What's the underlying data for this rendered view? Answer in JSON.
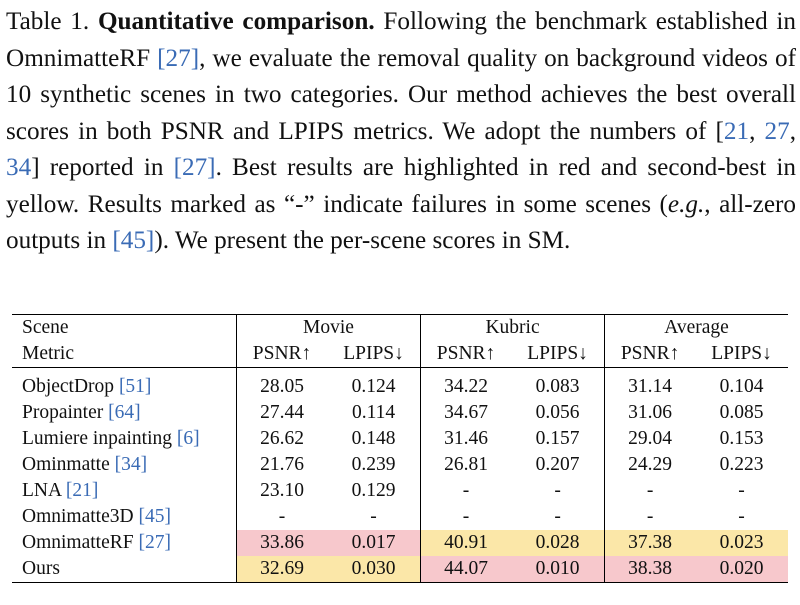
{
  "caption": {
    "label": "Table 1.",
    "title": "Quantitative comparison.",
    "p1": " Following the benchmark established in OmnimatteRF ",
    "c1": "[27]",
    "p2": ", we evaluate the removal quality on background videos of 10 synthetic scenes in two categories. Our method achieves the best overall scores in both PSNR and LPIPS metrics.  We adopt the numbers of [",
    "c2": "21",
    "p3": ", ",
    "c3": "27",
    "p4": ", ",
    "c4": "34",
    "p5": "] reported in ",
    "c5": "[27]",
    "p6": ". Best results are highlighted in red and second-best in yellow. Results marked as “-” indicate failures in some scenes (",
    "eg": "e.g.",
    "p7": ", all-zero outputs in ",
    "c6": "[45]",
    "p8": "). We present the per-scene scores in SM."
  },
  "table": {
    "scene_label": "Scene",
    "metric_label": "Metric",
    "groups": [
      "Movie",
      "Kubric",
      "Average"
    ],
    "metrics": [
      "PSNR↑",
      "LPIPS↓",
      "PSNR↑",
      "LPIPS↓",
      "PSNR↑",
      "LPIPS↓"
    ],
    "rows": [
      {
        "name": "ObjectDrop ",
        "cite": "[51]",
        "values": [
          "28.05",
          "0.124",
          "34.22",
          "0.083",
          "31.14",
          "0.104"
        ]
      },
      {
        "name": "Propainter ",
        "cite": "[64]",
        "values": [
          "27.44",
          "0.114",
          "34.67",
          "0.056",
          "31.06",
          "0.085"
        ]
      },
      {
        "name": "Lumiere inpainting ",
        "cite": "[6]",
        "values": [
          "26.62",
          "0.148",
          "31.46",
          "0.157",
          "29.04",
          "0.153"
        ]
      },
      {
        "name": "Ominmatte ",
        "cite": "[34]",
        "values": [
          "21.76",
          "0.239",
          "26.81",
          "0.207",
          "24.29",
          "0.223"
        ]
      },
      {
        "name": "LNA ",
        "cite": "[21]",
        "values": [
          "23.10",
          "0.129",
          "-",
          "-",
          "-",
          "-"
        ]
      },
      {
        "name": "Omnimatte3D ",
        "cite": "[45]",
        "values": [
          "-",
          "-",
          "-",
          "-",
          "-",
          "-"
        ]
      },
      {
        "name": "OmnimatteRF ",
        "cite": "[27]",
        "values": [
          "33.86",
          "0.017",
          "40.91",
          "0.028",
          "37.38",
          "0.023"
        ]
      },
      {
        "name": "Ours",
        "cite": "",
        "values": [
          "32.69",
          "0.030",
          "44.07",
          "0.010",
          "38.38",
          "0.020"
        ]
      }
    ],
    "highlight_colors": {
      "best": "#f7c8cc",
      "second": "#fbe7a8"
    }
  }
}
